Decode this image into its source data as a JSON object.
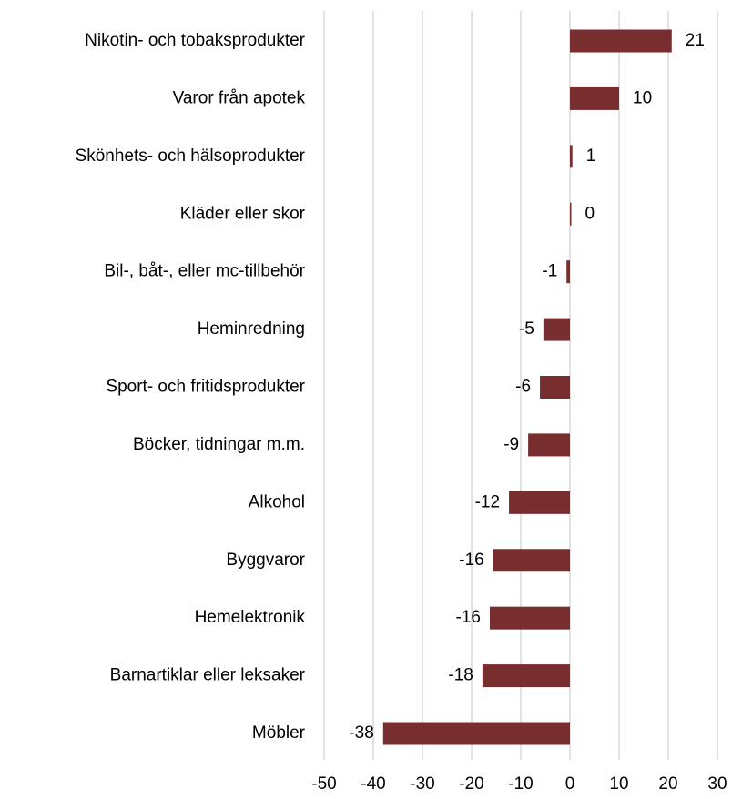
{
  "chart_data": {
    "type": "barh",
    "categories": [
      "Nikotin- och tobaksprodukter",
      "Varor från apotek",
      "Skönhets- och hälsoprodukter",
      "Kläder eller skor",
      "Bil-, båt-, eller mc-tillbehör",
      "Heminredning",
      "Sport- och fritidsprodukter",
      "Böcker, tidningar m.m.",
      "Alkohol",
      "Byggvaror",
      "Hemelektronik",
      "Barnartiklar eller leksaker",
      "Möbler"
    ],
    "values": [
      20.7,
      10.0,
      0.5,
      0.2,
      -0.7,
      -5.4,
      -6.1,
      -8.5,
      -12.4,
      -15.6,
      -16.3,
      -17.8,
      -38.0
    ],
    "value_labels": [
      "21",
      "10",
      "1",
      "0",
      "-1",
      "-5",
      "-6",
      "-9",
      "-12",
      "-16",
      "-16",
      "-18",
      "-38"
    ],
    "color": "#782e2e",
    "xlim": [
      -50,
      30
    ],
    "xticks": [
      -50,
      -40,
      -30,
      -20,
      -10,
      0,
      10,
      20,
      30
    ],
    "grid": true
  }
}
